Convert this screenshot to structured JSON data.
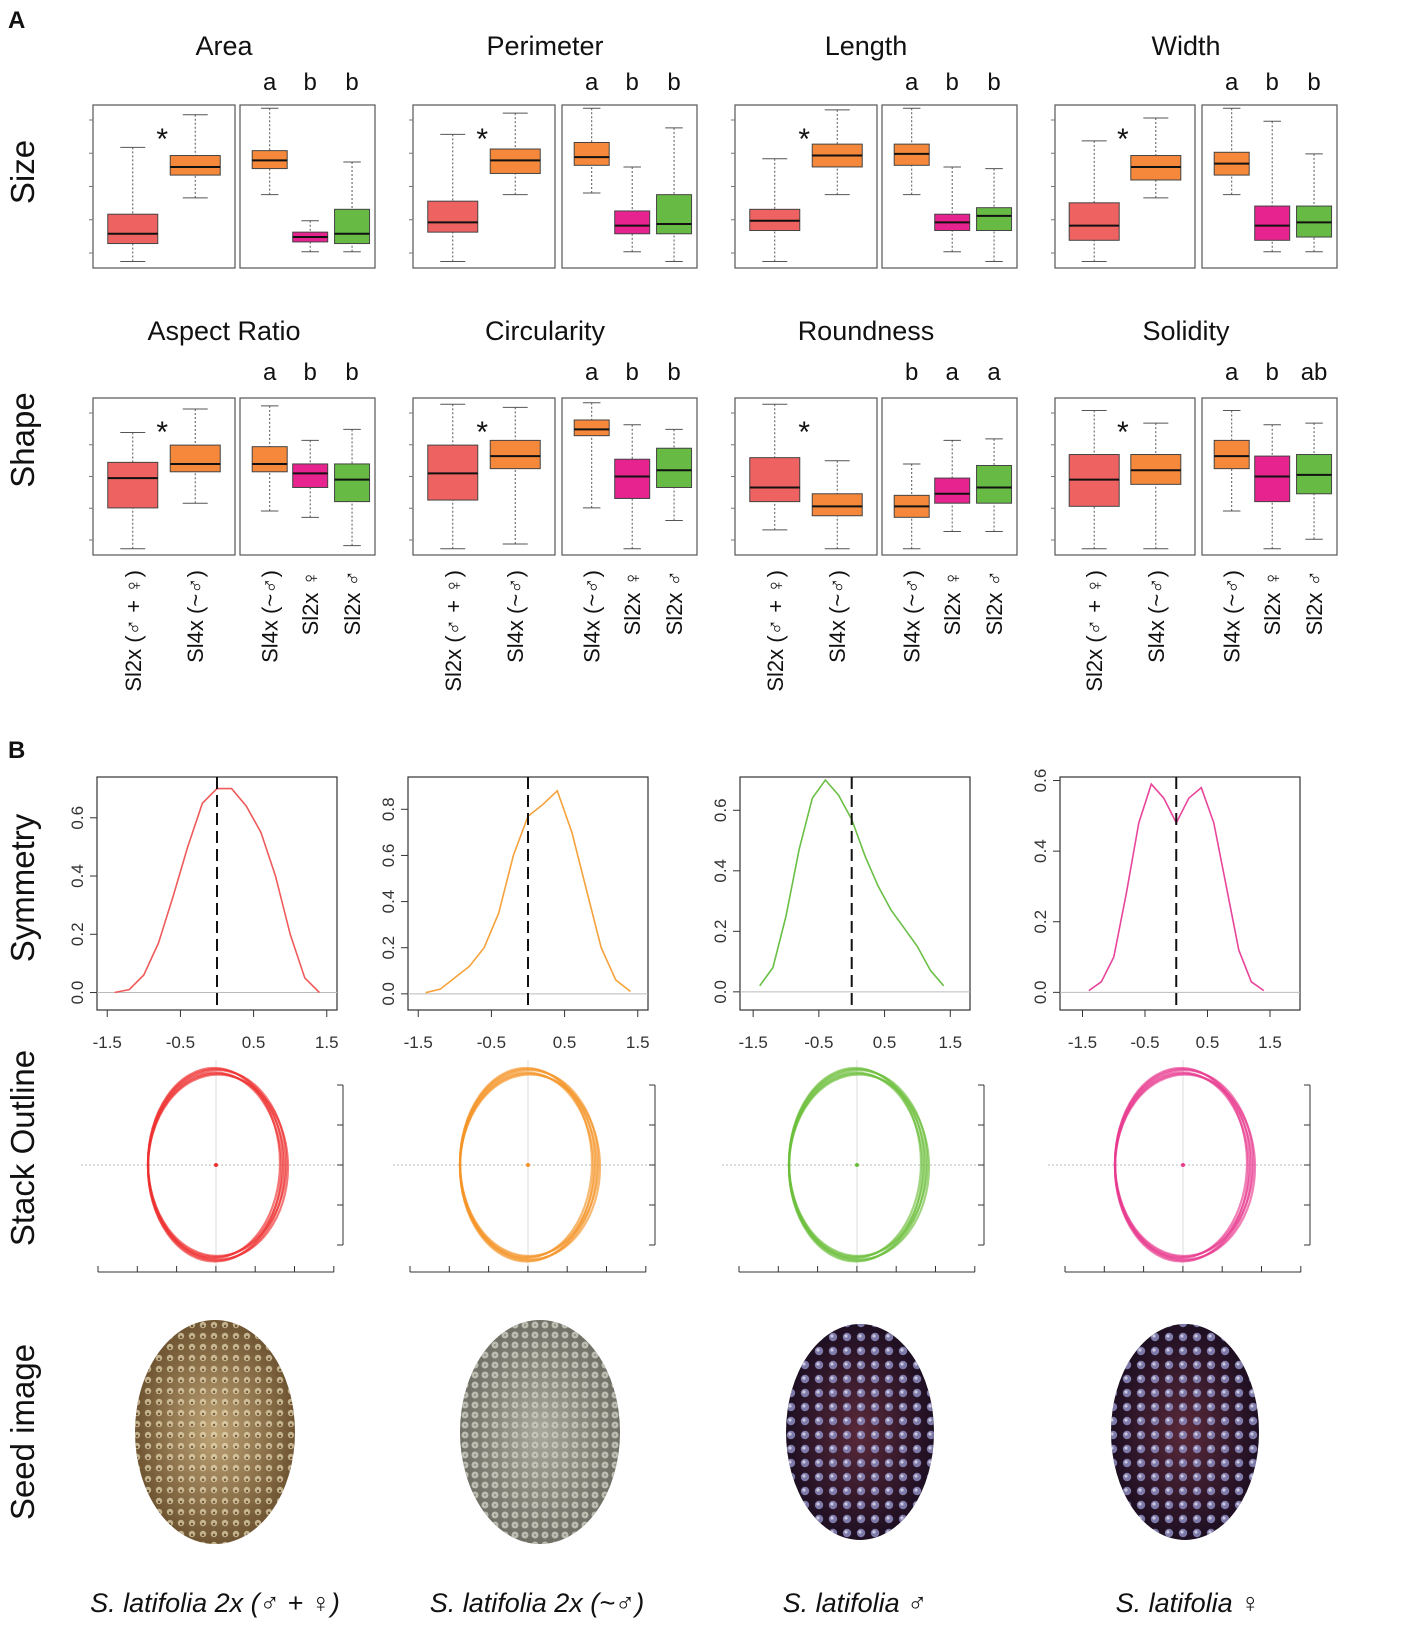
{
  "panel_labels": [
    "A",
    "B"
  ],
  "row_labels": [
    "Size",
    "Shape",
    "Symmetry",
    "Stack Outline",
    "Seed image"
  ],
  "captions": [
    "S. latifolia 2x (♂ + ♀)",
    "S. latifolia 2x (~♂)",
    "S. latifolia ♂",
    "S. latifolia ♀"
  ],
  "chart_data": [
    {
      "type": "boxplot",
      "title": "Area",
      "annotation": "*",
      "letters": [
        "a",
        "b",
        "b"
      ],
      "ylim": [
        0,
        100
      ],
      "boxes": [
        {
          "color": "#ef6262",
          "values": [
            4,
            15,
            21,
            33,
            74
          ]
        },
        {
          "color": "#f5883a",
          "values": [
            43,
            57,
            62,
            69,
            94
          ]
        },
        {
          "color": "#f5883a",
          "values": [
            45,
            61,
            66,
            72,
            98
          ]
        },
        {
          "color": "#e6238e",
          "values": [
            10,
            16,
            19,
            22,
            29
          ]
        },
        {
          "color": "#67bb45",
          "values": [
            10,
            15,
            21,
            36,
            65
          ]
        }
      ]
    },
    {
      "type": "boxplot",
      "title": "Perimeter",
      "annotation": "*",
      "letters": [
        "a",
        "b",
        "b"
      ],
      "ylim": [
        0,
        100
      ],
      "boxes": [
        {
          "color": "#ef6262",
          "values": [
            4,
            22,
            28,
            41,
            82
          ]
        },
        {
          "color": "#f5883a",
          "values": [
            45,
            58,
            66,
            73,
            95
          ]
        },
        {
          "color": "#f5883a",
          "values": [
            46,
            63,
            68,
            77,
            98
          ]
        },
        {
          "color": "#e6238e",
          "values": [
            10,
            21,
            26,
            35,
            62
          ]
        },
        {
          "color": "#67bb45",
          "values": [
            4,
            21,
            27,
            45,
            86
          ]
        }
      ]
    },
    {
      "type": "boxplot",
      "title": "Length",
      "annotation": "*",
      "letters": [
        "a",
        "b",
        "b"
      ],
      "ylim": [
        0,
        100
      ],
      "boxes": [
        {
          "color": "#ef6262",
          "values": [
            4,
            23,
            29,
            36,
            67
          ]
        },
        {
          "color": "#f5883a",
          "values": [
            45,
            62,
            69,
            76,
            97
          ]
        },
        {
          "color": "#f5883a",
          "values": [
            45,
            63,
            70,
            76,
            98
          ]
        },
        {
          "color": "#e6238e",
          "values": [
            10,
            23,
            28,
            33,
            62
          ]
        },
        {
          "color": "#67bb45",
          "values": [
            4,
            23,
            32,
            37,
            61
          ]
        }
      ]
    },
    {
      "type": "boxplot",
      "title": "Width",
      "annotation": "*",
      "letters": [
        "a",
        "b",
        "b"
      ],
      "ylim": [
        0,
        100
      ],
      "boxes": [
        {
          "color": "#ef6262",
          "values": [
            4,
            17,
            26,
            40,
            78
          ]
        },
        {
          "color": "#f5883a",
          "values": [
            43,
            54,
            62,
            69,
            92
          ]
        },
        {
          "color": "#f5883a",
          "values": [
            45,
            57,
            64,
            71,
            98
          ]
        },
        {
          "color": "#e6238e",
          "values": [
            10,
            17,
            26,
            38,
            90
          ]
        },
        {
          "color": "#67bb45",
          "values": [
            10,
            19,
            28,
            38,
            70
          ]
        }
      ]
    },
    {
      "type": "boxplot",
      "title": "Aspect Ratio",
      "annotation": "*",
      "letters": [
        "a",
        "b",
        "b"
      ],
      "ylim": [
        0,
        100
      ],
      "categories": [
        "Sl2x (♂ + ♀)",
        "Sl4x (~♂)",
        "Sl4x (~♂)",
        "Sl2x ♀",
        "Sl2x ♂"
      ],
      "boxes": [
        {
          "color": "#ef6262",
          "values": [
            4,
            30,
            49,
            59,
            78
          ]
        },
        {
          "color": "#f5883a",
          "values": [
            33,
            53,
            58,
            70,
            93
          ]
        },
        {
          "color": "#f5883a",
          "values": [
            28,
            53,
            58,
            69,
            95
          ]
        },
        {
          "color": "#e6238e",
          "values": [
            24,
            43,
            52,
            58,
            73
          ]
        },
        {
          "color": "#67bb45",
          "values": [
            6,
            34,
            48,
            58,
            80
          ]
        }
      ]
    },
    {
      "type": "boxplot",
      "title": "Circularity",
      "annotation": "*",
      "letters": [
        "a",
        "b",
        "b"
      ],
      "ylim": [
        0,
        100
      ],
      "categories": [
        "Sl2x (♂ + ♀)",
        "Sl4x (~♂)",
        "Sl4x (~♂)",
        "Sl2x ♀",
        "Sl2x ♂"
      ],
      "boxes": [
        {
          "color": "#ef6262",
          "values": [
            4,
            35,
            52,
            70,
            96
          ]
        },
        {
          "color": "#f5883a",
          "values": [
            7,
            55,
            63,
            73,
            94
          ]
        },
        {
          "color": "#f5883a",
          "values": [
            30,
            76,
            80,
            86,
            97
          ]
        },
        {
          "color": "#e6238e",
          "values": [
            4,
            36,
            50,
            61,
            83
          ]
        },
        {
          "color": "#67bb45",
          "values": [
            22,
            43,
            54,
            68,
            80
          ]
        }
      ]
    },
    {
      "type": "boxplot",
      "title": "Roundness",
      "annotation": "*",
      "letters": [
        "b",
        "a",
        "a"
      ],
      "ylim": [
        0,
        100
      ],
      "categories": [
        "Sl2x (♂ + ♀)",
        "Sl4x (~♂)",
        "Sl4x (~♂)",
        "Sl2x ♀",
        "Sl2x ♂"
      ],
      "boxes": [
        {
          "color": "#ef6262",
          "values": [
            16,
            34,
            43,
            62,
            96
          ]
        },
        {
          "color": "#f5883a",
          "values": [
            4,
            25,
            31,
            39,
            60
          ]
        },
        {
          "color": "#f5883a",
          "values": [
            4,
            24,
            31,
            38,
            58
          ]
        },
        {
          "color": "#e6238e",
          "values": [
            15,
            33,
            39,
            49,
            73
          ]
        },
        {
          "color": "#67bb45",
          "values": [
            15,
            33,
            43,
            57,
            74
          ]
        }
      ]
    },
    {
      "type": "boxplot",
      "title": "Solidity",
      "annotation": "*",
      "letters": [
        "a",
        "b",
        "ab"
      ],
      "ylim": [
        0,
        100
      ],
      "categories": [
        "Sl2x (♂ + ♀)",
        "Sl4x (~♂)",
        "Sl4x (~♂)",
        "Sl2x ♀",
        "Sl2x ♂"
      ],
      "boxes": [
        {
          "color": "#ef6262",
          "values": [
            4,
            31,
            48,
            64,
            92
          ]
        },
        {
          "color": "#f5883a",
          "values": [
            4,
            45,
            54,
            64,
            84
          ]
        },
        {
          "color": "#f5883a",
          "values": [
            28,
            55,
            63,
            73,
            92
          ]
        },
        {
          "color": "#e6238e",
          "values": [
            4,
            34,
            50,
            63,
            83
          ]
        },
        {
          "color": "#67bb45",
          "values": [
            10,
            39,
            51,
            64,
            84
          ]
        }
      ]
    },
    {
      "type": "density",
      "color": "#ef5b5b",
      "vline": 0,
      "xlim": [
        -1.64,
        1.64
      ],
      "ylim": [
        -0.06,
        0.74
      ],
      "xticks": [
        -1.5,
        -0.5,
        0.5,
        1.5
      ],
      "yticks": [
        {
          "value": 0,
          "label": "0.0"
        },
        0.2,
        0.4,
        0.6
      ],
      "x": [
        -1.4,
        -1.2,
        -1.0,
        -0.8,
        -0.6,
        -0.4,
        -0.2,
        0,
        0.2,
        0.4,
        0.6,
        0.8,
        1.0,
        1.2,
        1.4
      ],
      "values": [
        0,
        0.01,
        0.06,
        0.17,
        0.33,
        0.5,
        0.65,
        0.7,
        0.7,
        0.64,
        0.55,
        0.4,
        0.2,
        0.05,
        0
      ]
    },
    {
      "type": "density",
      "color": "#f5a23c",
      "vline": 0,
      "xlim": [
        -1.64,
        1.64
      ],
      "ylim": [
        -0.07,
        0.94
      ],
      "xticks": [
        -1.5,
        -0.5,
        0.5,
        1.5
      ],
      "yticks": [
        {
          "value": 0,
          "label": "0.0"
        },
        0.2,
        0.4,
        0.6,
        0.8
      ],
      "x": [
        -1.4,
        -1.2,
        -1.0,
        -0.8,
        -0.6,
        -0.4,
        -0.2,
        0,
        0.2,
        0.4,
        0.6,
        0.8,
        1.0,
        1.2,
        1.4
      ],
      "values": [
        0.005,
        0.02,
        0.07,
        0.12,
        0.2,
        0.35,
        0.6,
        0.77,
        0.82,
        0.88,
        0.7,
        0.45,
        0.2,
        0.06,
        0.01
      ]
    },
    {
      "type": "density",
      "color": "#6abf45",
      "vline": 0,
      "xlim": [
        -1.7,
        1.8
      ],
      "ylim": [
        -0.06,
        0.71
      ],
      "xticks": [
        -1.5,
        -0.5,
        0.5,
        1.5
      ],
      "yticks": [
        {
          "value": 0,
          "label": "0.0"
        },
        0.2,
        0.4,
        0.6
      ],
      "x": [
        -1.4,
        -1.2,
        -1.0,
        -0.8,
        -0.6,
        -0.4,
        -0.2,
        0,
        0.2,
        0.4,
        0.6,
        0.8,
        1.0,
        1.2,
        1.4
      ],
      "values": [
        0.02,
        0.08,
        0.25,
        0.47,
        0.64,
        0.7,
        0.65,
        0.57,
        0.45,
        0.35,
        0.27,
        0.21,
        0.15,
        0.07,
        0.02
      ]
    },
    {
      "type": "density",
      "color": "#e8449a",
      "vline": 0,
      "xlim": [
        -1.86,
        1.98
      ],
      "ylim": [
        -0.05,
        0.61
      ],
      "xticks": [
        -1.5,
        -0.5,
        0.5,
        1.5
      ],
      "yticks": [
        {
          "value": 0,
          "label": "0.0"
        },
        0.2,
        0.4,
        0.6
      ],
      "x": [
        -1.4,
        -1.2,
        -1.0,
        -0.8,
        -0.6,
        -0.4,
        -0.2,
        0,
        0.2,
        0.4,
        0.6,
        0.8,
        1.0,
        1.2,
        1.4
      ],
      "values": [
        0.005,
        0.03,
        0.1,
        0.28,
        0.48,
        0.59,
        0.55,
        0.48,
        0.55,
        0.58,
        0.48,
        0.3,
        0.12,
        0.03,
        0.005
      ]
    }
  ]
}
